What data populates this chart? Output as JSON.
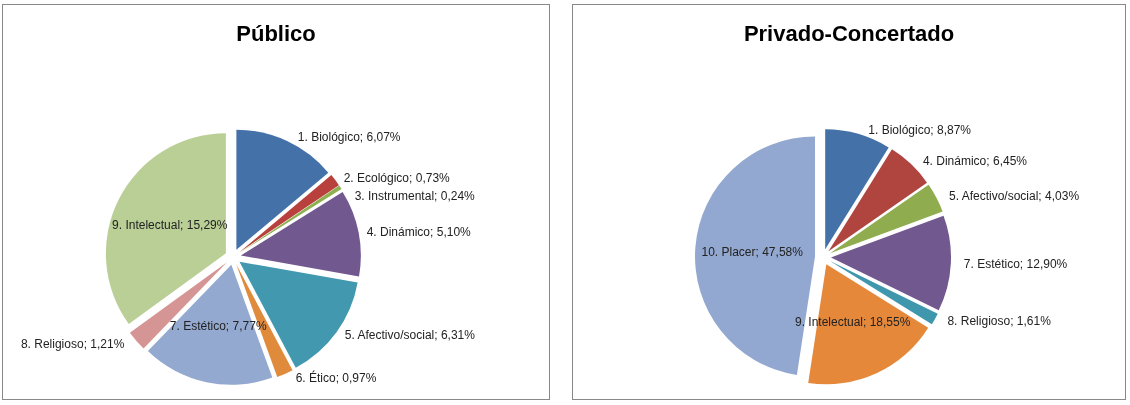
{
  "chart_data": [
    {
      "type": "pie",
      "title": "Público",
      "categories": [
        "1. Biológico",
        "2. Ecológico",
        "3. Instrumental",
        "4. Dinámico",
        "5. Afectivo/social",
        "6. Ético",
        "7. Estético",
        "8. Religioso",
        "9. Intelectual"
      ],
      "values": [
        6.07,
        0.73,
        0.24,
        5.1,
        6.31,
        0.97,
        7.77,
        1.21,
        15.29
      ],
      "value_labels": [
        "6,07%",
        "0,73%",
        "0,24%",
        "5,10%",
        "6,31%",
        "0,97%",
        "7,77%",
        "1,21%",
        "15,29%"
      ],
      "colors": [
        "#4472a8",
        "#b8413d",
        "#8fb050",
        "#71588f",
        "#4198af",
        "#e08a3c",
        "#93a9d0",
        "#d69595",
        "#b9cf96"
      ],
      "legend": false
    },
    {
      "type": "pie",
      "title": "Privado-Concertado",
      "categories": [
        "1. Biológico",
        "4. Dinámico",
        "5. Afectivo/social",
        "7. Estético",
        "8. Religioso",
        "9. Intelectual",
        "10. Placer"
      ],
      "values": [
        8.87,
        6.45,
        4.03,
        12.9,
        1.61,
        18.55,
        47.58
      ],
      "value_labels": [
        "8,87%",
        "6,45%",
        "4,03%",
        "12,90%",
        "1,61%",
        "18,55%",
        "47,58%"
      ],
      "colors": [
        "#4472a8",
        "#b04540",
        "#8fac4f",
        "#71588f",
        "#3f97ad",
        "#e5883a",
        "#93a8d0"
      ],
      "legend": false
    }
  ]
}
